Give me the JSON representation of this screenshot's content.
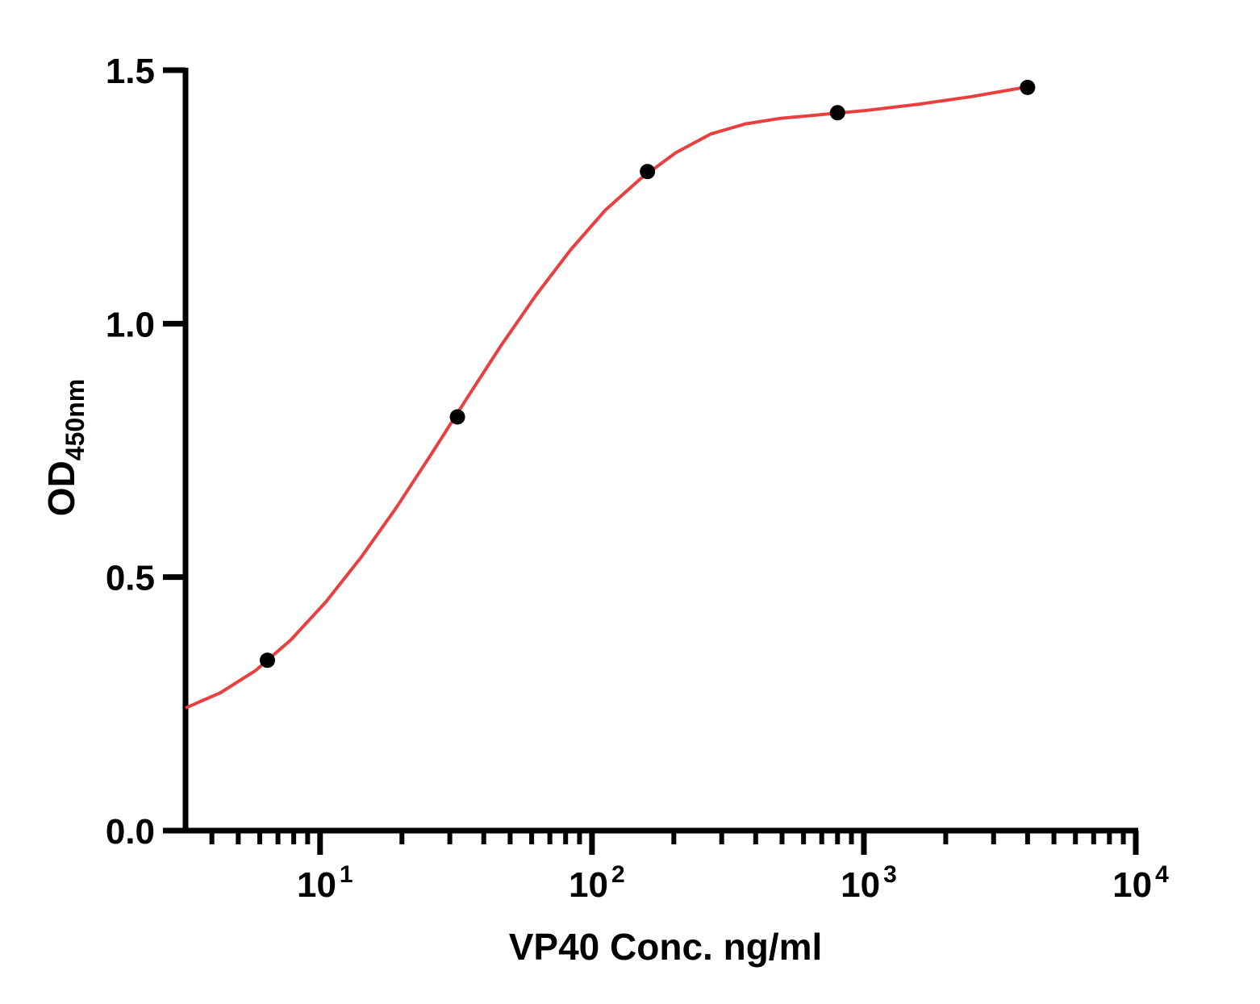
{
  "chart_data": {
    "type": "scatter",
    "title": "",
    "xlabel": "VP40 Conc. ng/ml",
    "ylabel": "OD",
    "ylabel_subscript": "450nm",
    "x_scale": "log",
    "xlim": [
      3.2,
      10000
    ],
    "ylim": [
      0,
      1.5
    ],
    "grid": false,
    "legend": "none",
    "y_ticks": [
      "0.0",
      "0.5",
      "1.0",
      "1.5"
    ],
    "y_tick_values": [
      0,
      0.5,
      1.0,
      1.5
    ],
    "x_ticks": [
      {
        "base": "10",
        "exp": "1",
        "value": 10
      },
      {
        "base": "10",
        "exp": "2",
        "value": 100
      },
      {
        "base": "10",
        "exp": "3",
        "value": 1000
      },
      {
        "base": "10",
        "exp": "4",
        "value": 10000
      }
    ],
    "series": [
      {
        "points": [
          {
            "x": 6.4,
            "y": 0.336
          },
          {
            "x": 32,
            "y": 0.816
          },
          {
            "x": 160,
            "y": 1.3
          },
          {
            "x": 800,
            "y": 1.416
          },
          {
            "x": 4000,
            "y": 1.466
          }
        ],
        "marker_color": "#000000",
        "fit_color": "#e8403f",
        "fit_curve": [
          [
            3.2,
            0.242
          ],
          [
            4.3,
            0.272
          ],
          [
            5.8,
            0.316
          ],
          [
            7.8,
            0.376
          ],
          [
            10.5,
            0.451
          ],
          [
            14.1,
            0.538
          ],
          [
            19,
            0.636
          ],
          [
            25.6,
            0.742
          ],
          [
            34.4,
            0.85
          ],
          [
            46.2,
            0.956
          ],
          [
            62.2,
            1.056
          ],
          [
            83.6,
            1.146
          ],
          [
            112,
            1.224
          ],
          [
            151,
            1.286
          ],
          [
            203,
            1.337
          ],
          [
            273,
            1.374
          ],
          [
            367,
            1.394
          ],
          [
            494,
            1.405
          ],
          [
            1000,
            1.42
          ],
          [
            1600,
            1.433
          ],
          [
            2500,
            1.448
          ],
          [
            4000,
            1.467
          ]
        ]
      }
    ]
  }
}
